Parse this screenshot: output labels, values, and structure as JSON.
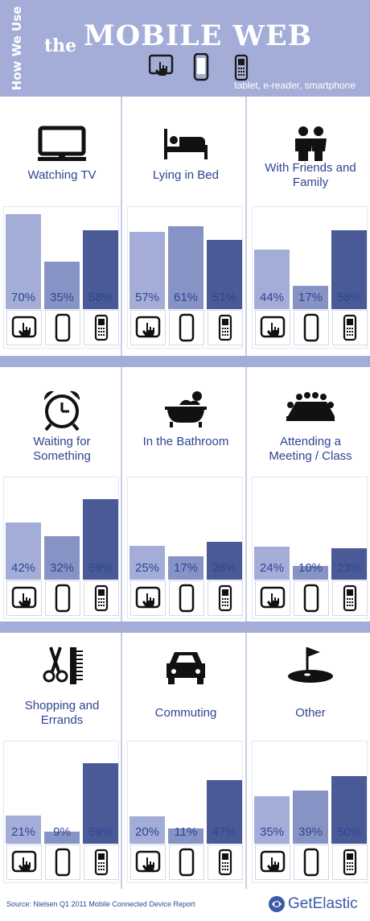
{
  "header": {
    "side_text": "How We Use",
    "the": "the",
    "title": "MOBILE WEB",
    "subtitle": "tablet, e-reader, smartphone"
  },
  "colors": {
    "tablet": "#a3add7",
    "ereader": "#8793c4",
    "smartphone": "#4a5a97",
    "text": "#2e4591",
    "band": "#a3add7"
  },
  "chart_data": {
    "type": "bar",
    "series_order": [
      "tablet",
      "e-reader",
      "smartphone"
    ],
    "ylim": [
      0,
      100
    ],
    "categories": [
      {
        "label": "Watching TV",
        "icon": "tv-icon",
        "values": [
          70,
          35,
          58
        ],
        "labels": [
          "70%",
          "35%",
          "58%"
        ]
      },
      {
        "label": "Lying in Bed",
        "icon": "bed-icon",
        "values": [
          57,
          61,
          51
        ],
        "labels": [
          "57%",
          "61%",
          "51%"
        ]
      },
      {
        "label": "With Friends and Family",
        "icon": "people-icon",
        "values": [
          44,
          17,
          58
        ],
        "labels": [
          "44%",
          "17%",
          "58%"
        ]
      },
      {
        "label": "Waiting for Something",
        "icon": "alarm-clock-icon",
        "values": [
          42,
          32,
          59
        ],
        "labels": [
          "42%",
          "32%",
          "59%"
        ]
      },
      {
        "label": "In the Bathroom",
        "icon": "bathtub-icon",
        "values": [
          25,
          17,
          28
        ],
        "labels": [
          "25%",
          "17%",
          "28%"
        ]
      },
      {
        "label": "Attending a Meeting / Class",
        "icon": "meeting-table-icon",
        "values": [
          24,
          10,
          23
        ],
        "labels": [
          "24%",
          "10%",
          "23%"
        ]
      },
      {
        "label": "Shopping and Errands",
        "icon": "scissors-comb-icon",
        "values": [
          21,
          9,
          59
        ],
        "labels": [
          "21%",
          "9%",
          "59%"
        ]
      },
      {
        "label": "Commuting",
        "icon": "car-icon",
        "values": [
          20,
          11,
          47
        ],
        "labels": [
          "20%",
          "11%",
          "47%"
        ]
      },
      {
        "label": "Other",
        "icon": "golf-flag-icon",
        "values": [
          35,
          39,
          50
        ],
        "labels": [
          "35%",
          "39%",
          "50%"
        ]
      }
    ]
  },
  "footer": {
    "source": "Source: Nielsen Q1 2011 Mobile Connected Device Report",
    "logo": "GetElastic"
  }
}
